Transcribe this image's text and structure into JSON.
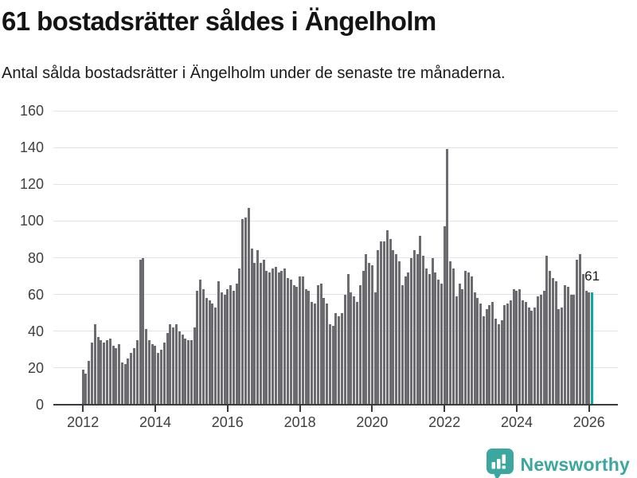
{
  "chart_data": {
    "type": "bar",
    "title": "61 bostadsrätter såldes i Ängelholm",
    "subtitle": "Antal sålda bostadsrätter i Ängelholm under de senaste tre månaderna.",
    "frequency": "monthly",
    "x_start_month": "2012-01",
    "x_end_month": "2026-02",
    "x_tick_labels": [
      "2012",
      "2014",
      "2016",
      "2018",
      "2020",
      "2022",
      "2024",
      "2026"
    ],
    "y_ticks": [
      0,
      20,
      40,
      60,
      80,
      100,
      120,
      140,
      160
    ],
    "ylim": [
      0,
      160
    ],
    "grid": "horizontal",
    "legend": "none",
    "series": [
      {
        "name": "Antal sålda bostadsrätter",
        "values": [
          19,
          17,
          24,
          34,
          44,
          37,
          35,
          34,
          35,
          36,
          32,
          31,
          33,
          23,
          22,
          25,
          28,
          31,
          35,
          79,
          80,
          41,
          35,
          33,
          32,
          28,
          30,
          34,
          39,
          44,
          42,
          44,
          40,
          38,
          36,
          35,
          35,
          42,
          62,
          68,
          63,
          58,
          57,
          55,
          53,
          67,
          61,
          60,
          63,
          65,
          62,
          66,
          74,
          101,
          102,
          107,
          85,
          77,
          84,
          77,
          79,
          73,
          72,
          74,
          75,
          72,
          73,
          74,
          69,
          68,
          65,
          64,
          70,
          70,
          63,
          62,
          56,
          55,
          65,
          66,
          58,
          55,
          44,
          43,
          50,
          48,
          50,
          60,
          71,
          61,
          59,
          56,
          65,
          73,
          82,
          77,
          76,
          61,
          84,
          89,
          89,
          95,
          90,
          84,
          82,
          78,
          65,
          70,
          72,
          80,
          84,
          82,
          92,
          81,
          74,
          71,
          80,
          72,
          68,
          66,
          97,
          139,
          78,
          74,
          59,
          66,
          63,
          73,
          72,
          70,
          61,
          58,
          55,
          48,
          52,
          54,
          56,
          47,
          44,
          46,
          54,
          55,
          57,
          63,
          62,
          63,
          57,
          56,
          53,
          51,
          53,
          59,
          60,
          62,
          81,
          73,
          69,
          67,
          52,
          53,
          65,
          64,
          60,
          60,
          79,
          82,
          71,
          62,
          61,
          61
        ]
      }
    ],
    "highlight": {
      "index": 169,
      "month": "2026-02",
      "value": 61,
      "label": "61"
    },
    "colors": {
      "bar": "#6b6b70",
      "highlight": "#0ba7a6"
    }
  },
  "footer": {
    "brand": "Newsworthy"
  },
  "colors": {
    "background": "#ffffff",
    "axis": "#3b3b3b",
    "gridline": "#e2e2e2",
    "title_text": "#141414",
    "tick_label": "#3f3f3f",
    "brand_teal": "#3ca79e"
  }
}
